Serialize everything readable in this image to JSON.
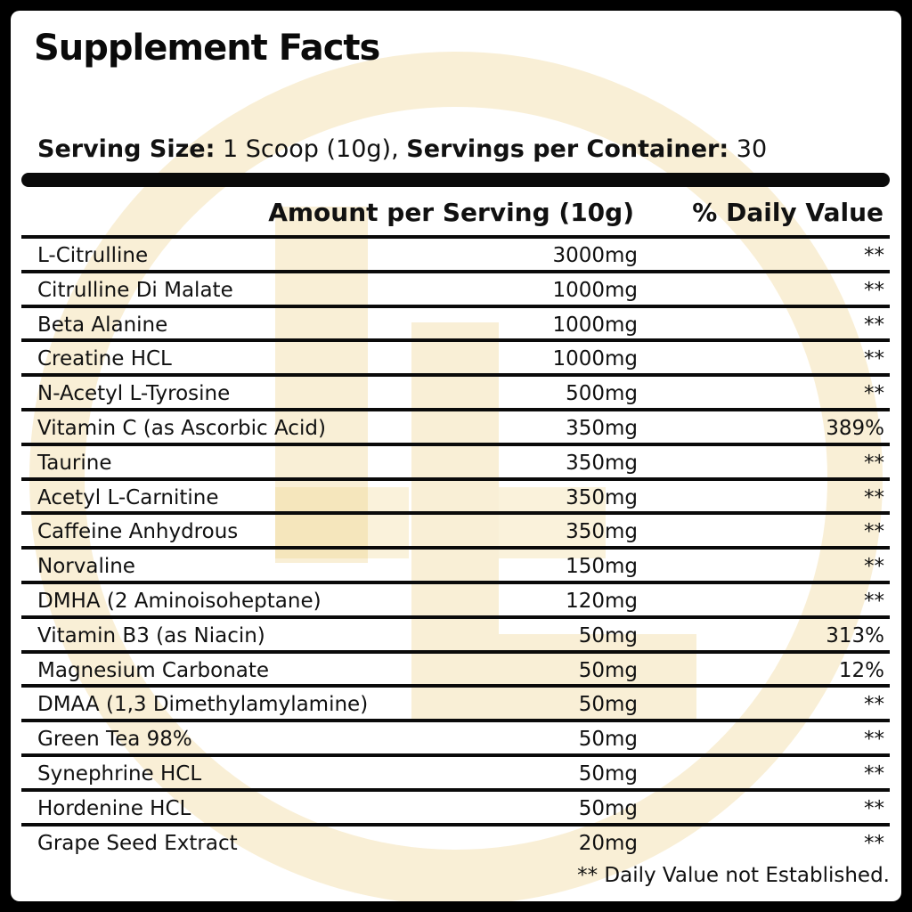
{
  "title": "Supplement Facts",
  "serving": {
    "size_label": "Serving Size:",
    "size_value": "1 Scoop (10g),",
    "servings_label": "Servings per Container:",
    "servings_value": "30"
  },
  "table": {
    "headers": {
      "amount": "Amount per Serving (10g)",
      "daily_value": "% Daily Value"
    },
    "rows": [
      {
        "name": "L-Citrulline",
        "amount": "3000mg",
        "dv": "**"
      },
      {
        "name": "Citrulline Di Malate",
        "amount": "1000mg",
        "dv": "**"
      },
      {
        "name": "Beta Alanine",
        "amount": "1000mg",
        "dv": "**"
      },
      {
        "name": "Creatine HCL",
        "amount": "1000mg",
        "dv": "**"
      },
      {
        "name": "N-Acetyl L-Tyrosine",
        "amount": "500mg",
        "dv": "**"
      },
      {
        "name": "Vitamin C (as Ascorbic Acid)",
        "amount": "350mg",
        "dv": "389%"
      },
      {
        "name": "Taurine",
        "amount": "350mg",
        "dv": "**"
      },
      {
        "name": "Acetyl L-Carnitine",
        "amount": "350mg",
        "dv": "**"
      },
      {
        "name": "Caffeine Anhydrous",
        "amount": "350mg",
        "dv": "**"
      },
      {
        "name": "Norvaline",
        "amount": "150mg",
        "dv": "**"
      },
      {
        "name": "DMHA (2 Aminoisoheptane)",
        "amount": "120mg",
        "dv": "**"
      },
      {
        "name": "Vitamin B3 (as Niacin)",
        "amount": "50mg",
        "dv": "313%"
      },
      {
        "name": "Magnesium Carbonate",
        "amount": "50mg",
        "dv": "12%"
      },
      {
        "name": "DMAA (1,3 Dimethylamylamine)",
        "amount": "50mg",
        "dv": "**"
      },
      {
        "name": "Green Tea 98%",
        "amount": "50mg",
        "dv": "**"
      },
      {
        "name": "Synephrine HCL",
        "amount": "50mg",
        "dv": "**"
      },
      {
        "name": "Hordenine HCL",
        "amount": "50mg",
        "dv": "**"
      },
      {
        "name": "Grape Seed Extract",
        "amount": "20mg",
        "dv": "**"
      }
    ]
  },
  "footnote": "** Daily Value not Established.",
  "colors": {
    "background": "#ffffff",
    "text": "#111111",
    "rules": "#0a0a0a",
    "watermark_gold": "#e9c76a"
  },
  "watermark": {
    "icon": "gold-circle-logo-icon"
  }
}
